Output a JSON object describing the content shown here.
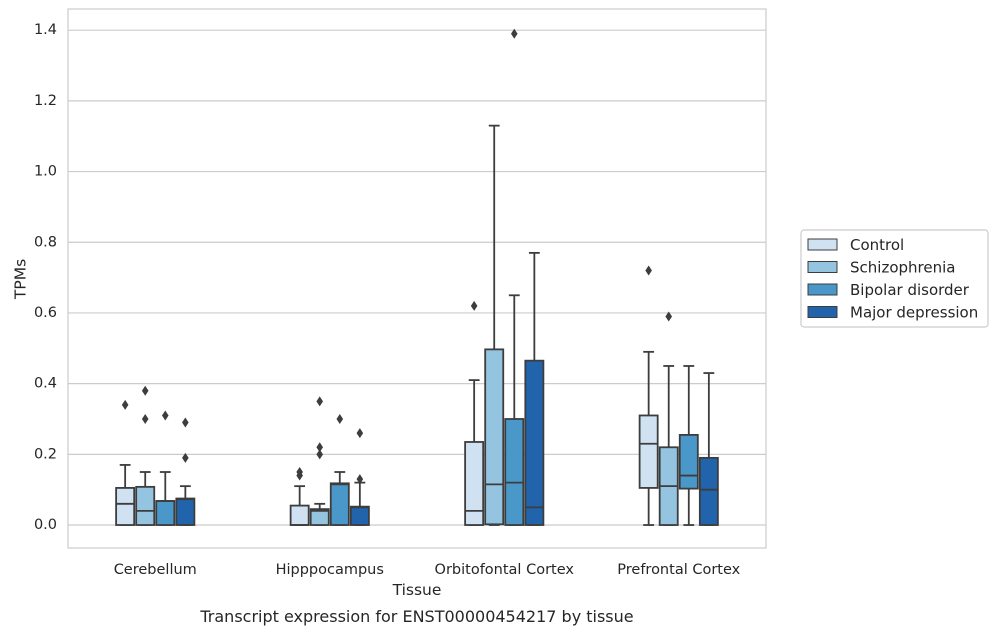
{
  "caption": "Transcript expression for ENST00000454217 by tissue",
  "chart_data": {
    "type": "box",
    "xlabel": "Tissue",
    "ylabel": "TPMs",
    "ylim": [
      -0.065,
      1.46
    ],
    "yticks": [
      0.0,
      0.2,
      0.4,
      0.6,
      0.8,
      1.0,
      1.2,
      1.4
    ],
    "ytick_labels": [
      "0.0",
      "0.2",
      "0.4",
      "0.6",
      "0.8",
      "1.0",
      "1.2",
      "1.4"
    ],
    "grid": "horizontal",
    "legend_position": "right",
    "categories": [
      "Cerebellum",
      "Hipppocampus",
      "Orbitofontal Cortex",
      "Prefrontal Cortex"
    ],
    "series": [
      {
        "name": "Control",
        "color": "#d0e1f2",
        "boxes": [
          {
            "whislo": 0.0,
            "q1": 0.0,
            "med": 0.06,
            "q3": 0.105,
            "whishi": 0.17,
            "fliers": [
              0.34
            ]
          },
          {
            "whislo": 0.0,
            "q1": 0.0,
            "med": 0.0,
            "q3": 0.055,
            "whishi": 0.11,
            "fliers": [
              0.14,
              0.15
            ]
          },
          {
            "whislo": 0.0,
            "q1": 0.0,
            "med": 0.04,
            "q3": 0.235,
            "whishi": 0.41,
            "fliers": [
              0.62
            ]
          },
          {
            "whislo": 0.0,
            "q1": 0.105,
            "med": 0.23,
            "q3": 0.31,
            "whishi": 0.49,
            "fliers": [
              0.72
            ]
          }
        ]
      },
      {
        "name": "Schizophrenia",
        "color": "#94c4df",
        "boxes": [
          {
            "whislo": 0.0,
            "q1": 0.0,
            "med": 0.04,
            "q3": 0.108,
            "whishi": 0.15,
            "fliers": [
              0.3,
              0.38
            ]
          },
          {
            "whislo": 0.0,
            "q1": 0.0,
            "med": 0.04,
            "q3": 0.045,
            "whishi": 0.06,
            "fliers": [
              0.2,
              0.22,
              0.35
            ]
          },
          {
            "whislo": 0.0,
            "q1": 0.002,
            "med": 0.115,
            "q3": 0.497,
            "whishi": 1.13,
            "fliers": []
          },
          {
            "whislo": 0.0,
            "q1": 0.0,
            "med": 0.11,
            "q3": 0.22,
            "whishi": 0.45,
            "fliers": [
              0.59
            ]
          }
        ]
      },
      {
        "name": "Bipolar disorder",
        "color": "#4a98c9",
        "boxes": [
          {
            "whislo": 0.0,
            "q1": 0.0,
            "med": 0.068,
            "q3": 0.068,
            "whishi": 0.15,
            "fliers": [
              0.31
            ]
          },
          {
            "whislo": 0.0,
            "q1": 0.0,
            "med": 0.115,
            "q3": 0.118,
            "whishi": 0.15,
            "fliers": [
              0.3
            ]
          },
          {
            "whislo": 0.0,
            "q1": 0.0,
            "med": 0.12,
            "q3": 0.3,
            "whishi": 0.65,
            "fliers": [
              1.39
            ]
          },
          {
            "whislo": 0.0,
            "q1": 0.103,
            "med": 0.14,
            "q3": 0.255,
            "whishi": 0.45,
            "fliers": []
          }
        ]
      },
      {
        "name": "Major depression",
        "color": "#2164ab",
        "boxes": [
          {
            "whislo": 0.0,
            "q1": 0.0,
            "med": 0.073,
            "q3": 0.075,
            "whishi": 0.11,
            "fliers": [
              0.19,
              0.29
            ]
          },
          {
            "whislo": 0.0,
            "q1": 0.0,
            "med": 0.05,
            "q3": 0.052,
            "whishi": 0.12,
            "fliers": [
              0.13,
              0.26
            ]
          },
          {
            "whislo": 0.0,
            "q1": 0.0,
            "med": 0.05,
            "q3": 0.465,
            "whishi": 0.77,
            "fliers": []
          },
          {
            "whislo": 0.0,
            "q1": 0.0,
            "med": 0.1,
            "q3": 0.19,
            "whishi": 0.43,
            "fliers": []
          }
        ]
      }
    ]
  }
}
